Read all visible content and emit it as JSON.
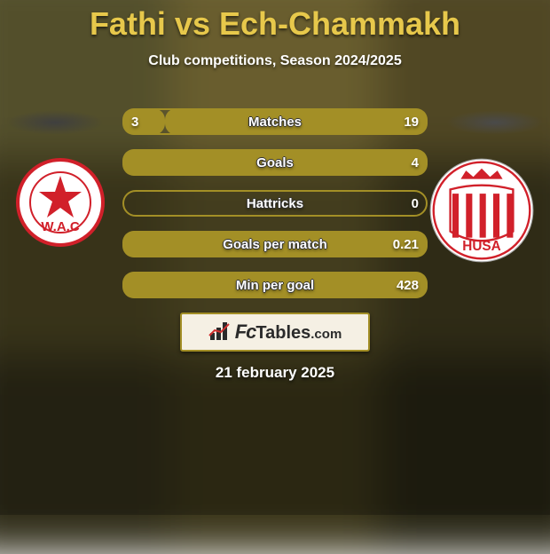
{
  "title": "Fathi vs Ech-Chammakh",
  "subtitle": "Club competitions, Season 2024/2025",
  "date": "21 february 2025",
  "colors": {
    "title": "#e7c84b",
    "bar_border": "#a38f26",
    "bar_fill": "#a38f26",
    "logo_bg": "#f5f0e4",
    "logo_border": "#a38f26",
    "logo_text": "#2b2b2b",
    "text": "#ffffff",
    "shadow_left": "#3f3f3f",
    "shadow_right": "#4a4a4a"
  },
  "bars": [
    {
      "label": "Matches",
      "left_val": "3",
      "right_val": "19",
      "left_pct": 14,
      "right_pct": 86
    },
    {
      "label": "Goals",
      "left_val": "",
      "right_val": "4",
      "left_pct": 0,
      "right_pct": 100
    },
    {
      "label": "Hattricks",
      "left_val": "",
      "right_val": "0",
      "left_pct": 0,
      "right_pct": 0
    },
    {
      "label": "Goals per match",
      "left_val": "",
      "right_val": "0.21",
      "left_pct": 0,
      "right_pct": 100
    },
    {
      "label": "Min per goal",
      "left_val": "",
      "right_val": "428",
      "left_pct": 0,
      "right_pct": 100
    }
  ],
  "logo": {
    "fc": "Fc",
    "tables": "Tables",
    "com": ".com"
  },
  "badges": {
    "left": {
      "name": "wac-casablanca-badge",
      "bg": "#ffffff",
      "ring": "#d1202a",
      "text": "W.A.C",
      "text_color": "#d1202a",
      "star_color": "#d1202a"
    },
    "right": {
      "name": "husa-agadir-badge",
      "bg": "#ffffff",
      "ring": "#d1202a",
      "text": "HUSA",
      "text_color": "#d1202a",
      "crown_color": "#d1202a",
      "stripe_color": "#d1202a"
    }
  },
  "background": {
    "grid": [
      3,
      3
    ],
    "cells": [
      "#6f6a3a",
      "#8c7d3e",
      "#6b5f30",
      "#4b4522",
      "#5a5228",
      "#3f3a1e",
      "#2f2c18",
      "#3a3519",
      "#262413"
    ]
  }
}
